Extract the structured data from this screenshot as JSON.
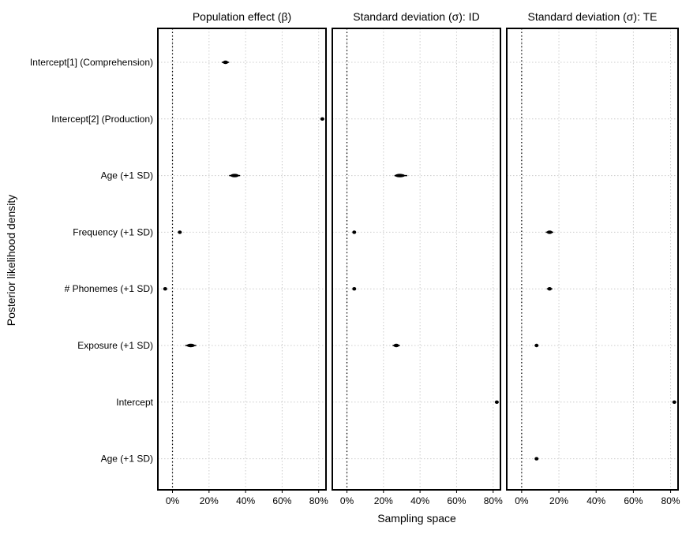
{
  "chart_data": {
    "type": "forest",
    "xlabel": "Sampling space",
    "ylabel": "Posterior likelihood density",
    "xlim": [
      -8,
      84
    ],
    "x_ticks": [
      0,
      20,
      40,
      60,
      80
    ],
    "x_tick_labels": [
      "0%",
      "20%",
      "40%",
      "60%",
      "80%"
    ],
    "reference_line": 0,
    "grid": true,
    "row_labels": [
      "Intercept[1] (Comprehension)",
      "Intercept[2] (Production)",
      "Age (+1 SD)",
      "Frequency (+1 SD)",
      "# Phonemes (+1 SD)",
      "Exposure (+1 SD)",
      "Intercept",
      "Age (+1 SD)"
    ],
    "facets": [
      {
        "title": "Population effect (β)",
        "points": [
          {
            "row": 0,
            "value": 29,
            "lo": 27,
            "hi": 31
          },
          {
            "row": 1,
            "value": 82,
            "lo": 81,
            "hi": 83
          },
          {
            "row": 2,
            "value": 34,
            "lo": 31,
            "hi": 37
          },
          {
            "row": 3,
            "value": 4,
            "lo": 3,
            "hi": 5
          },
          {
            "row": 4,
            "value": -4,
            "lo": -5,
            "hi": -3
          },
          {
            "row": 5,
            "value": 10,
            "lo": 7,
            "hi": 13
          }
        ]
      },
      {
        "title": "Standard deviation (σ): ID",
        "points": [
          {
            "row": 2,
            "value": 29,
            "lo": 26,
            "hi": 33
          },
          {
            "row": 3,
            "value": 4,
            "lo": 3.5,
            "hi": 4.5
          },
          {
            "row": 4,
            "value": 4,
            "lo": 3.5,
            "hi": 4.5
          },
          {
            "row": 5,
            "value": 27,
            "lo": 25,
            "hi": 29
          },
          {
            "row": 6,
            "value": 82,
            "lo": 81,
            "hi": 83
          }
        ]
      },
      {
        "title": "Standard deviation (σ): TE",
        "points": [
          {
            "row": 3,
            "value": 15,
            "lo": 13,
            "hi": 17
          },
          {
            "row": 4,
            "value": 15,
            "lo": 13.5,
            "hi": 16.5
          },
          {
            "row": 5,
            "value": 8,
            "lo": 7.5,
            "hi": 8.5
          },
          {
            "row": 6,
            "value": 82,
            "lo": 81.5,
            "hi": 82.5
          },
          {
            "row": 7,
            "value": 8,
            "lo": 7.5,
            "hi": 8.5
          }
        ]
      }
    ]
  }
}
